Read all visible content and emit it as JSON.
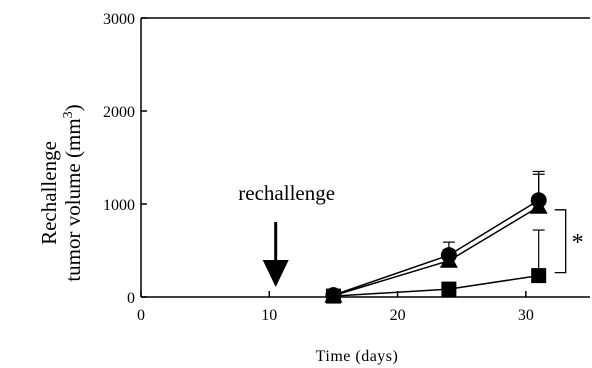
{
  "chart_data": {
    "type": "line",
    "xlabel": "Time (days)",
    "ylabel": [
      "Rechallenge",
      "tumor volume (mm",
      "3",
      ")"
    ],
    "xlim": [
      0,
      35
    ],
    "ylim": [
      0,
      3000
    ],
    "xticks": [
      0,
      10,
      20,
      30
    ],
    "yticks": [
      0,
      1000,
      2000,
      3000
    ],
    "series": [
      {
        "marker": "circle",
        "x": [
          15,
          24,
          31
        ],
        "y": [
          20,
          450,
          1040
        ],
        "err": [
          20,
          140,
          310
        ]
      },
      {
        "marker": "triangle",
        "x": [
          15,
          24,
          31
        ],
        "y": [
          15,
          390,
          970
        ],
        "err": [
          15,
          120,
          350
        ]
      },
      {
        "marker": "square",
        "x": [
          15,
          24,
          31
        ],
        "y": [
          10,
          85,
          230
        ],
        "err": [
          10,
          40,
          490
        ]
      }
    ],
    "annotations": {
      "arrow_label": "rechallenge",
      "arrow_x": 10.5,
      "significance": "*"
    }
  }
}
